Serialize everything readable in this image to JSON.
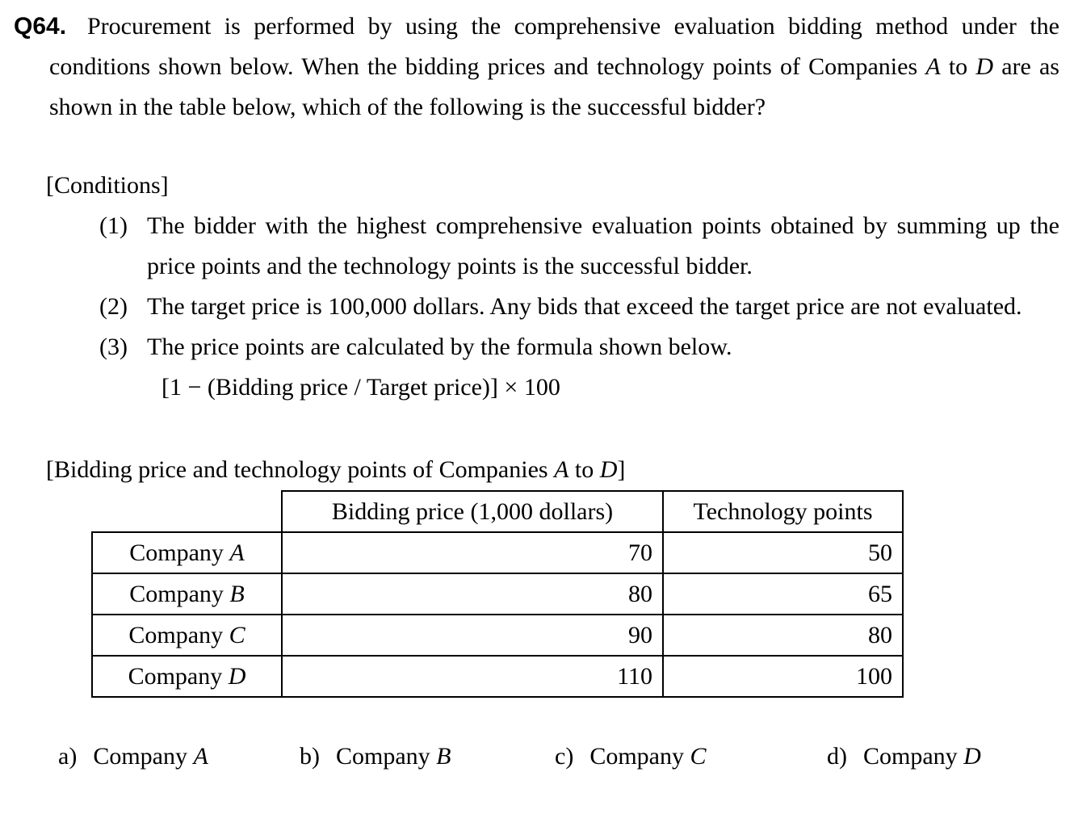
{
  "question": {
    "number": "Q64.",
    "text_parts": [
      {
        "t": "Procurement is performed by using the comprehensive evaluation bidding method under the conditions shown below. When the bidding prices and technology points of Companies ",
        "i": false
      },
      {
        "t": "A",
        "i": true
      },
      {
        "t": " to ",
        "i": false
      },
      {
        "t": "D",
        "i": true
      },
      {
        "t": " are as shown in the table below, which of the following is the successful bidder?",
        "i": false
      }
    ]
  },
  "conditions": {
    "heading": "[Conditions]",
    "items": [
      {
        "num": "(1)",
        "text": "The bidder with the highest comprehensive evaluation points obtained by summing up the price points and the technology points is the successful bidder."
      },
      {
        "num": "(2)",
        "text": "The target price is 100,000 dollars. Any bids that exceed the target price are not evaluated."
      },
      {
        "num": "(3)",
        "text": "The price points are calculated by the formula shown below."
      }
    ],
    "formula": "[1 − (Bidding price / Target price)] × 100"
  },
  "table": {
    "caption_parts": [
      {
        "t": "[Bidding price and technology points of Companies ",
        "i": false
      },
      {
        "t": "A",
        "i": true
      },
      {
        "t": " to ",
        "i": false
      },
      {
        "t": "D",
        "i": true
      },
      {
        "t": "]",
        "i": false
      }
    ],
    "col_headers": [
      "Bidding price (1,000 dollars)",
      "Technology points"
    ],
    "rows": [
      {
        "company_parts": [
          {
            "t": "Company ",
            "i": false
          },
          {
            "t": "A",
            "i": true
          }
        ],
        "bidding_price": "70",
        "technology_points": "50"
      },
      {
        "company_parts": [
          {
            "t": "Company ",
            "i": false
          },
          {
            "t": "B",
            "i": true
          }
        ],
        "bidding_price": "80",
        "technology_points": "65"
      },
      {
        "company_parts": [
          {
            "t": "Company ",
            "i": false
          },
          {
            "t": "C",
            "i": true
          }
        ],
        "bidding_price": "90",
        "technology_points": "80"
      },
      {
        "company_parts": [
          {
            "t": "Company ",
            "i": false
          },
          {
            "t": "D",
            "i": true
          }
        ],
        "bidding_price": "110",
        "technology_points": "100"
      }
    ]
  },
  "options": [
    {
      "label": "a)",
      "name_parts": [
        {
          "t": "Company ",
          "i": false
        },
        {
          "t": "A",
          "i": true
        }
      ]
    },
    {
      "label": "b)",
      "name_parts": [
        {
          "t": "Company ",
          "i": false
        },
        {
          "t": "B",
          "i": true
        }
      ]
    },
    {
      "label": "c)",
      "name_parts": [
        {
          "t": "Company ",
          "i": false
        },
        {
          "t": "C",
          "i": true
        }
      ]
    },
    {
      "label": "d)",
      "name_parts": [
        {
          "t": "Company ",
          "i": false
        },
        {
          "t": "D",
          "i": true
        }
      ]
    }
  ]
}
